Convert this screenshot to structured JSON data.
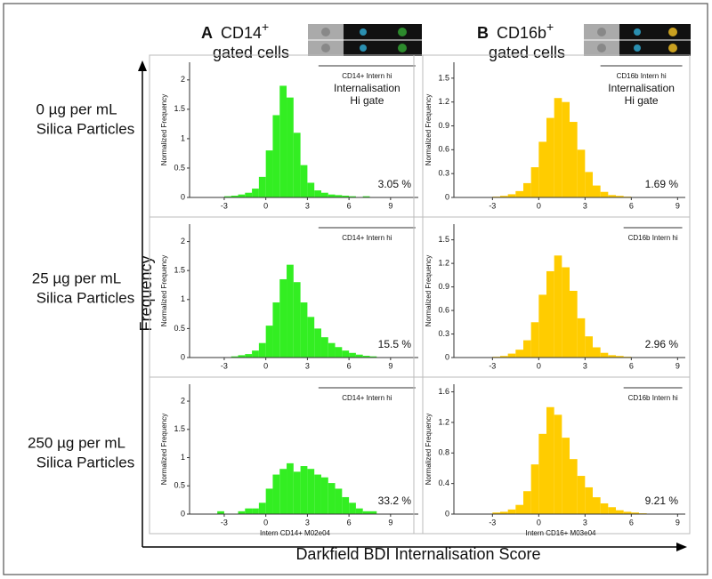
{
  "figure": {
    "columns": [
      {
        "letter": "A",
        "marker": "CD14",
        "sup": "+",
        "subtitle": "gated cells"
      },
      {
        "letter": "B",
        "marker": "CD16b",
        "sup": "+",
        "subtitle": "gated cells"
      }
    ],
    "rows": [
      {
        "line1": "0 µg per mL",
        "line2": "Silica Particles"
      },
      {
        "line1": "25 µg per mL",
        "line2": "Silica Particles"
      },
      {
        "line1": "250 µg per mL",
        "line2": "Silica Particles"
      }
    ],
    "y_axis_label": "Frequency",
    "x_axis_label": "Darkfield BDI Internalisation Score"
  },
  "chart_data": [
    {
      "type": "histogram",
      "ylabel": "Normalized Frequency",
      "color": "#33ee22",
      "bins": [
        -4.5,
        -4,
        -3.5,
        -3,
        -2.5,
        -2,
        -1.5,
        -1,
        -0.5,
        0,
        0.5,
        1,
        1.5,
        2,
        2.5,
        3,
        3.5,
        4,
        4.5,
        5,
        5.5,
        6,
        6.5,
        7,
        7.5,
        8,
        8.5,
        9,
        9.5,
        10,
        10.5
      ],
      "counts": [
        0,
        0,
        0,
        0.02,
        0.03,
        0.05,
        0.08,
        0.15,
        0.35,
        0.8,
        1.4,
        1.9,
        1.7,
        1.1,
        0.55,
        0.25,
        0.12,
        0.08,
        0.05,
        0.04,
        0.03,
        0.02,
        0,
        0.02,
        0,
        0,
        0,
        0,
        0,
        0
      ],
      "xlim": [
        -5.5,
        11
      ],
      "xticks": [
        -3,
        0,
        3,
        6,
        9
      ],
      "ylim": [
        0,
        2.3
      ],
      "yticks": [
        0,
        0.5,
        1,
        1.5,
        2
      ],
      "gate": [
        3.8,
        10.8
      ],
      "gate_label": "CD14+ Intern hi",
      "gate_note": [
        "Internalisation",
        "Hi gate"
      ],
      "annotation": "3.05 %"
    },
    {
      "type": "histogram",
      "ylabel": "Normalized Frequency",
      "color": "#ffcc00",
      "bins": [
        -4.5,
        -4,
        -3.5,
        -3,
        -2.5,
        -2,
        -1.5,
        -1,
        -0.5,
        0,
        0.5,
        1,
        1.5,
        2,
        2.5,
        3,
        3.5,
        4,
        4.5,
        5,
        5.5,
        6,
        6.5,
        7,
        7.5,
        8,
        8.5,
        9,
        9.5,
        10,
        10.5
      ],
      "counts": [
        0,
        0,
        0,
        0.01,
        0.02,
        0.04,
        0.08,
        0.18,
        0.38,
        0.7,
        1.0,
        1.25,
        1.2,
        0.95,
        0.6,
        0.32,
        0.15,
        0.07,
        0.03,
        0.02,
        0.01,
        0,
        0,
        0,
        0,
        0,
        0,
        0,
        0,
        0
      ],
      "xlim": [
        -5.5,
        9.5
      ],
      "xticks": [
        -3,
        0,
        3,
        6,
        9
      ],
      "ylim": [
        0,
        1.7
      ],
      "yticks": [
        0,
        0.3,
        0.6,
        0.9,
        1.2,
        1.5
      ],
      "gate": [
        4,
        9.3
      ],
      "gate_label": "CD16b Intern hi",
      "gate_note": [
        "Internalisation",
        "Hi gate"
      ],
      "annotation": "1.69 %"
    },
    {
      "type": "histogram",
      "ylabel": "Normalized Frequency",
      "color": "#33ee22",
      "bins": [
        -4.5,
        -4,
        -3.5,
        -3,
        -2.5,
        -2,
        -1.5,
        -1,
        -0.5,
        0,
        0.5,
        1,
        1.5,
        2,
        2.5,
        3,
        3.5,
        4,
        4.5,
        5,
        5.5,
        6,
        6.5,
        7,
        7.5,
        8,
        8.5,
        9,
        9.5,
        10,
        10.5
      ],
      "counts": [
        0,
        0,
        0,
        0,
        0.02,
        0.04,
        0.06,
        0.12,
        0.25,
        0.55,
        0.95,
        1.35,
        1.6,
        1.3,
        0.95,
        0.7,
        0.5,
        0.35,
        0.25,
        0.18,
        0.12,
        0.08,
        0.05,
        0.03,
        0.02,
        0,
        0,
        0,
        0,
        0
      ],
      "xlim": [
        -5.5,
        11
      ],
      "xticks": [
        -3,
        0,
        3,
        6,
        9
      ],
      "ylim": [
        0,
        2.3
      ],
      "yticks": [
        0,
        0.5,
        1,
        1.5,
        2
      ],
      "gate": [
        3.8,
        10.8
      ],
      "gate_label": "CD14+ Intern hi",
      "annotation": "15.5 %"
    },
    {
      "type": "histogram",
      "ylabel": "Normalized Frequency",
      "color": "#ffcc00",
      "bins": [
        -4.5,
        -4,
        -3.5,
        -3,
        -2.5,
        -2,
        -1.5,
        -1,
        -0.5,
        0,
        0.5,
        1,
        1.5,
        2,
        2.5,
        3,
        3.5,
        4,
        4.5,
        5,
        5.5,
        6,
        6.5,
        7,
        7.5,
        8,
        8.5,
        9,
        9.5,
        10,
        10.5
      ],
      "counts": [
        0,
        0,
        0,
        0.01,
        0.02,
        0.05,
        0.1,
        0.22,
        0.45,
        0.8,
        1.1,
        1.3,
        1.15,
        0.85,
        0.5,
        0.27,
        0.13,
        0.06,
        0.03,
        0.02,
        0.01,
        0,
        0,
        0,
        0,
        0,
        0,
        0,
        0,
        0
      ],
      "xlim": [
        -5.5,
        9.5
      ],
      "xticks": [
        -3,
        0,
        3,
        6,
        9
      ],
      "ylim": [
        0,
        1.7
      ],
      "yticks": [
        0,
        0.3,
        0.6,
        0.9,
        1.2,
        1.5
      ],
      "gate": [
        5.5,
        9.3
      ],
      "gate_label": "CD16b Intern hi",
      "annotation": "2.96 %"
    },
    {
      "type": "histogram",
      "ylabel": "Normalized Frequency",
      "xlabel": "Intern CD14+ M02e04",
      "color": "#33ee22",
      "bins": [
        -4.5,
        -4,
        -3.5,
        -3,
        -2.5,
        -2,
        -1.5,
        -1,
        -0.5,
        0,
        0.5,
        1,
        1.5,
        2,
        2.5,
        3,
        3.5,
        4,
        4.5,
        5,
        5.5,
        6,
        6.5,
        7,
        7.5,
        8,
        8.5,
        9,
        9.5,
        10,
        10.5
      ],
      "counts": [
        0,
        0,
        0.05,
        0,
        0,
        0.05,
        0.1,
        0.1,
        0.2,
        0.45,
        0.7,
        0.8,
        0.9,
        0.75,
        0.85,
        0.8,
        0.7,
        0.65,
        0.55,
        0.45,
        0.3,
        0.2,
        0.1,
        0.05,
        0.05,
        0,
        0,
        0,
        0,
        0
      ],
      "xlim": [
        -5.5,
        11
      ],
      "xticks": [
        -3,
        0,
        3,
        6,
        9
      ],
      "ylim": [
        0,
        2.3
      ],
      "yticks": [
        0,
        0.5,
        1,
        1.5,
        2
      ],
      "gate": [
        3.8,
        10.8
      ],
      "gate_label": "CD14+ Intern hi",
      "annotation": "33.2 %"
    },
    {
      "type": "histogram",
      "ylabel": "Normalized Frequency",
      "xlabel": "Intern CD16+ M03e04",
      "color": "#ffcc00",
      "bins": [
        -4.5,
        -4,
        -3.5,
        -3,
        -2.5,
        -2,
        -1.5,
        -1,
        -0.5,
        0,
        0.5,
        1,
        1.5,
        2,
        2.5,
        3,
        3.5,
        4,
        4.5,
        5,
        5.5,
        6,
        6.5,
        7,
        7.5,
        8,
        8.5,
        9,
        9.5,
        10,
        10.5
      ],
      "counts": [
        0,
        0,
        0,
        0.02,
        0.03,
        0.06,
        0.12,
        0.3,
        0.65,
        1.05,
        1.4,
        1.3,
        1.0,
        0.72,
        0.5,
        0.35,
        0.22,
        0.14,
        0.09,
        0.05,
        0.03,
        0.02,
        0.01,
        0,
        0,
        0,
        0,
        0,
        0,
        0
      ],
      "xlim": [
        -5.5,
        9.5
      ],
      "xticks": [
        -3,
        0,
        3,
        6,
        9
      ],
      "ylim": [
        0,
        1.7
      ],
      "yticks": [
        0,
        0.4,
        0.8,
        1.2,
        1.6
      ],
      "gate": [
        5.5,
        9.3
      ],
      "gate_label": "CD16b Intern hi",
      "annotation": "9.21 %"
    }
  ]
}
